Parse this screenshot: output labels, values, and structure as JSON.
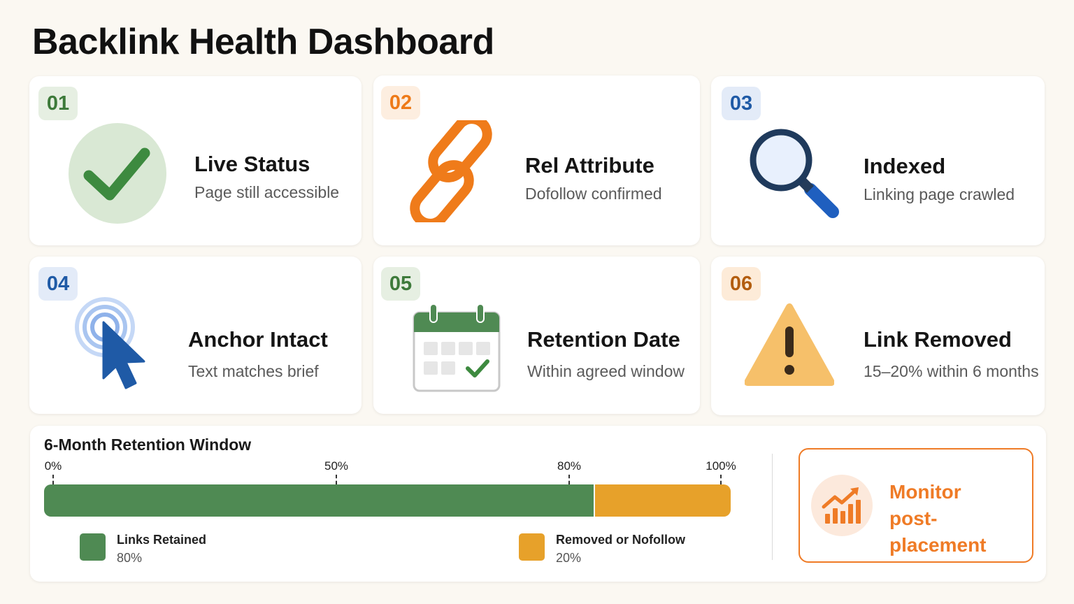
{
  "page_title": "Backlink Health Dashboard",
  "cards": [
    {
      "num": "01",
      "title": "Live Status",
      "subtitle": "Page still accessible",
      "icon": "check-circle-icon"
    },
    {
      "num": "02",
      "title": "Rel Attribute",
      "subtitle": "Dofollow confirmed",
      "icon": "link-chain-icon"
    },
    {
      "num": "03",
      "title": "Indexed",
      "subtitle": "Linking page crawled",
      "icon": "magnifier-icon"
    },
    {
      "num": "04",
      "title": "Anchor Intact",
      "subtitle": "Text matches brief",
      "icon": "cursor-click-icon"
    },
    {
      "num": "05",
      "title": "Retention Date",
      "subtitle": "Within agreed window",
      "icon": "calendar-check-icon"
    },
    {
      "num": "06",
      "title": "Link Removed",
      "subtitle": "15–20% within 6 months",
      "icon": "warning-triangle-icon"
    }
  ],
  "retention": {
    "title": "6-Month Retention Window",
    "ticks": [
      "0%",
      "50%",
      "80%",
      "100%"
    ],
    "retained_label": "Links Retained",
    "retained_value": "80%",
    "removed_label": "Removed or Nofollow",
    "removed_value": "20%",
    "retained_fraction": 0.8,
    "colors": {
      "retained": "#4f8a53",
      "removed": "#e7a12a"
    }
  },
  "monitor": {
    "line1": "Monitor",
    "line2": "post-placement",
    "icon": "chart-trend-up-icon",
    "color": "#ef7b26"
  }
}
